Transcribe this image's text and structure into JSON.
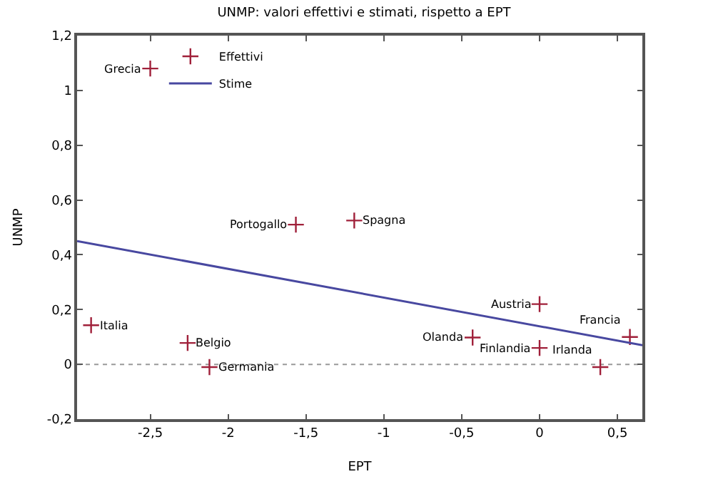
{
  "chart_data": {
    "type": "scatter",
    "title": "UNMP: valori effettivi e stimati, rispetto a EPT",
    "xlabel": "EPT",
    "ylabel": "UNMP",
    "xlim": [
      -2.97,
      0.66
    ],
    "ylim": [
      -0.2,
      1.2
    ],
    "xticks": [
      {
        "value": -2.5,
        "label": "-2,5"
      },
      -2,
      {
        "value": -1.5,
        "label": "-1,5"
      },
      -1,
      {
        "value": -0.5,
        "label": "-0,5"
      },
      0,
      {
        "value": 0.5,
        "label": "0,5"
      }
    ],
    "yticks": [
      {
        "value": -0.2,
        "label": "-0,2"
      },
      0,
      {
        "value": 0.2,
        "label": "0,2"
      },
      {
        "value": 0.4,
        "label": "0,4"
      },
      {
        "value": 0.6,
        "label": "0,6"
      },
      {
        "value": 0.8,
        "label": "0,8"
      },
      1,
      {
        "value": 1.2,
        "label": "1,2"
      }
    ],
    "grid": false,
    "legend": "top left",
    "series": [
      {
        "name": "Effettivi",
        "marker": "cross",
        "color": "#a0203a",
        "x": [
          -2.5,
          -1.565,
          -1.19,
          -2.88,
          -2.26,
          -2.12,
          0.0,
          0.58,
          -0.43,
          0.0,
          0.39
        ],
        "values": [
          1.08,
          0.51,
          0.525,
          0.143,
          0.078,
          -0.01,
          0.22,
          0.1,
          0.098,
          0.06,
          -0.01
        ]
      },
      {
        "name": "Stime",
        "type": "line",
        "marker": "none",
        "color": "#4848a0",
        "x": [
          -2.97,
          0.66
        ],
        "values": [
          0.45,
          0.07
        ]
      }
    ],
    "ref_lines": [
      {
        "axis": "y",
        "value": 0,
        "color": "#999999",
        "line_style": "dotted"
      }
    ],
    "annotations": [
      {
        "text": "Grecia",
        "x": -2.5,
        "y": 1.08
      },
      {
        "text": "Portogallo",
        "x": -1.565,
        "y": 0.51
      },
      {
        "text": "Spagna",
        "x": -1.19,
        "y": 0.525
      },
      {
        "text": "Italia",
        "x": -2.88,
        "y": 0.143
      },
      {
        "text": "Belgio",
        "x": -2.26,
        "y": 0.078
      },
      {
        "text": "Germania",
        "x": -2.12,
        "y": -0.01
      },
      {
        "text": "Austria",
        "x": 0.0,
        "y": 0.22
      },
      {
        "text": "Francia",
        "x": 0.58,
        "y": 0.1
      },
      {
        "text": "Olanda",
        "x": -0.43,
        "y": 0.098
      },
      {
        "text": "Finlandia",
        "x": 0.0,
        "y": 0.06
      },
      {
        "text": "Irlanda",
        "x": 0.39,
        "y": -0.01
      }
    ]
  }
}
